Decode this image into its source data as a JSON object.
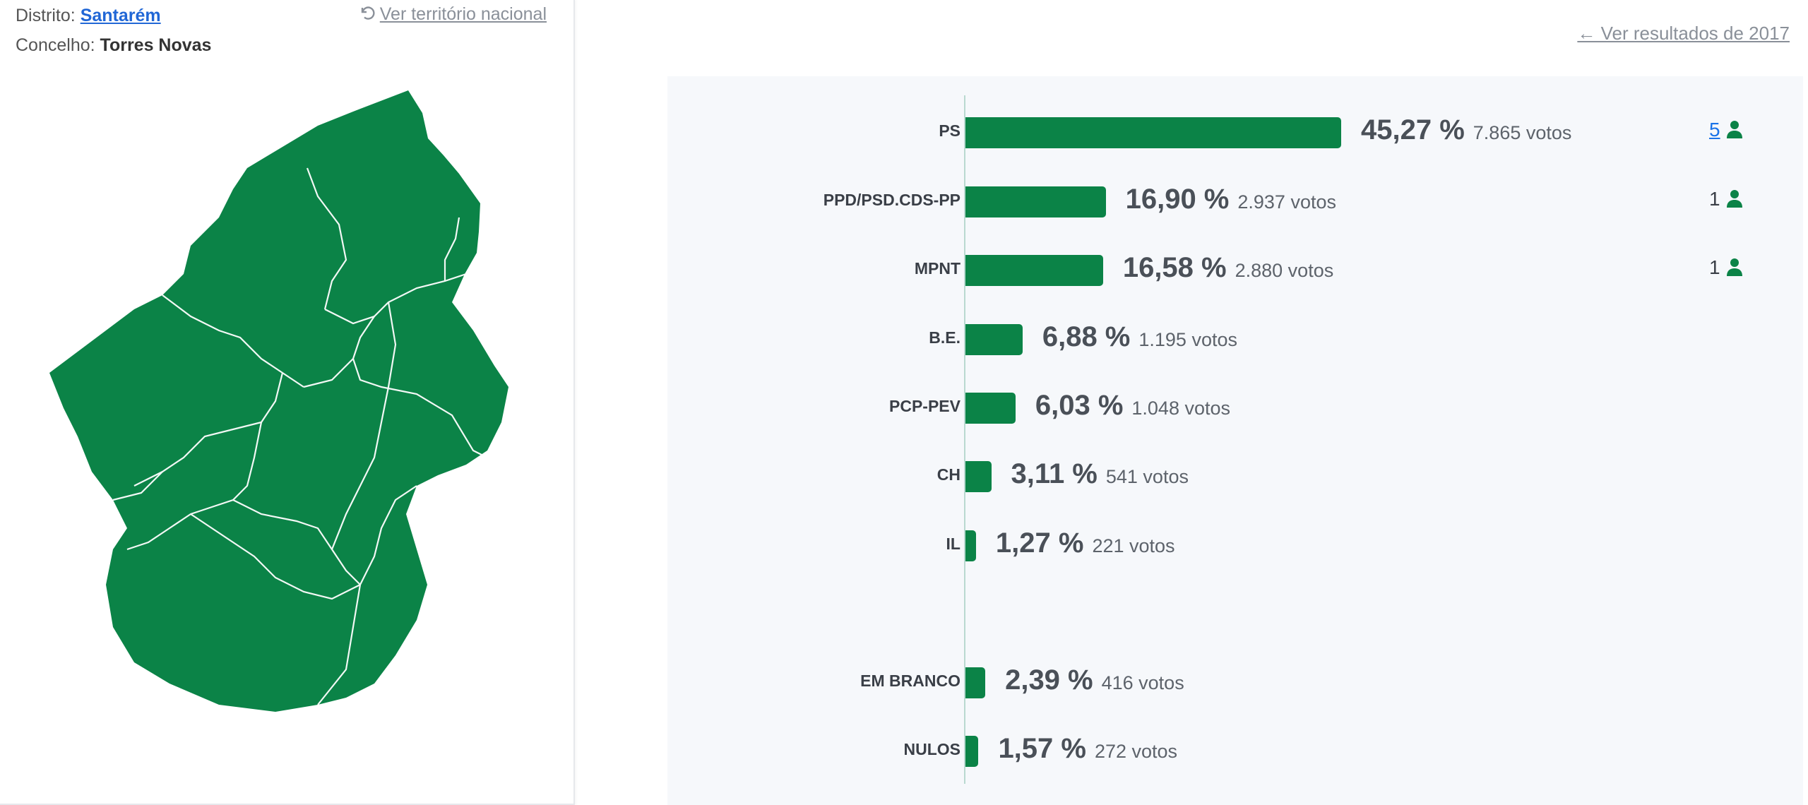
{
  "location": {
    "district_label": "Distrito:",
    "district_value": "Santarém",
    "council_label": "Concelho:",
    "council_value": "Torres Novas",
    "national_link": "Ver território nacional"
  },
  "previous_results_link": "← Ver resultados de 2017",
  "colors": {
    "bar": "#0b8347",
    "map": "#0b8347",
    "link": "#1a73e8"
  },
  "icons": {
    "undo": "undo-icon",
    "person": "person-icon"
  },
  "chart_data": {
    "type": "bar",
    "orientation": "horizontal",
    "categories": [
      "PS",
      "PPD/PSD.CDS-PP",
      "MPNT",
      "B.E.",
      "PCP-PEV",
      "CH",
      "IL",
      "EM BRANCO",
      "NULOS"
    ],
    "values": [
      45.27,
      16.9,
      16.58,
      6.88,
      6.03,
      3.11,
      1.27,
      2.39,
      1.57
    ],
    "series": [
      {
        "values": [
          45.27,
          16.9,
          16.58,
          6.88,
          6.03,
          3.11,
          1.27,
          2.39,
          1.57
        ],
        "labels": [
          "45,27 %",
          "16,90 %",
          "16,58 %",
          "6,88 %",
          "6,03 %",
          "3,11 %",
          "1,27 %",
          "2,39 %",
          "1,57 %"
        ],
        "votes": [
          "7.865 votos",
          "2.937 votos",
          "2.880 votos",
          "1.195 votos",
          "1.048 votos",
          "541 votos",
          "221 votos",
          "416 votos",
          "272 votos"
        ]
      }
    ],
    "seats": [
      "5",
      "1",
      "1",
      "",
      "",
      "",
      "",
      "",
      ""
    ],
    "unit": "%",
    "grid": false,
    "legend": "none"
  }
}
